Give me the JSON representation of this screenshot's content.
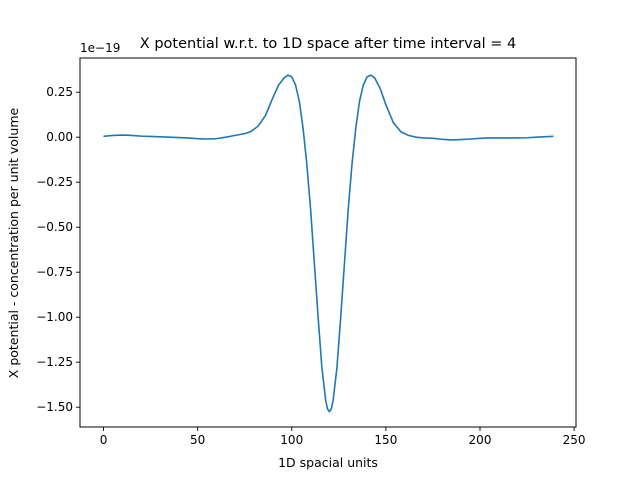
{
  "chart_data": {
    "type": "line",
    "title": "X potential w.r.t. to 1D space after time interval = 4",
    "xlabel": "1D spacial units",
    "ylabel": "X potential - concentration per unit volume",
    "y_offset_label": "1e−19",
    "xlim": [
      -12.5,
      251
    ],
    "ylim": [
      -1.61,
      0.44
    ],
    "xticks": [
      0,
      50,
      100,
      150,
      200,
      250
    ],
    "yticks": [
      -1.5,
      -1.25,
      -1.0,
      -0.75,
      -0.5,
      -0.25,
      0.0,
      0.25
    ],
    "ytick_labels": [
      "−1.50",
      "−1.25",
      "−1.00",
      "−0.75",
      "−0.50",
      "−0.25",
      "0.00",
      "0.25"
    ],
    "grid": false,
    "line_color": "#1f77b4",
    "series": [
      {
        "x": [
          0,
          5,
          10,
          15,
          20,
          25,
          30,
          35,
          40,
          45,
          50,
          55,
          60,
          65,
          70,
          75,
          78,
          82,
          86,
          90,
          93,
          96,
          98,
          100,
          102,
          104,
          106,
          108,
          110,
          112,
          114,
          116,
          118,
          119,
          120,
          121,
          122,
          124,
          126,
          128,
          130,
          132,
          134,
          136,
          138,
          140,
          142,
          144,
          147,
          150,
          154,
          158,
          162,
          166,
          170,
          175,
          180,
          185,
          190,
          195,
          200,
          205,
          210,
          215,
          220,
          225,
          230,
          235,
          239
        ],
        "y": [
          0.005,
          0.01,
          0.012,
          0.01,
          0.006,
          0.004,
          0.002,
          0.0,
          -0.002,
          -0.004,
          -0.008,
          -0.01,
          -0.008,
          0.0,
          0.01,
          0.02,
          0.03,
          0.06,
          0.12,
          0.22,
          0.29,
          0.33,
          0.345,
          0.335,
          0.29,
          0.2,
          0.05,
          -0.15,
          -0.4,
          -0.7,
          -1.0,
          -1.28,
          -1.46,
          -1.51,
          -1.525,
          -1.51,
          -1.46,
          -1.28,
          -1.0,
          -0.7,
          -0.4,
          -0.15,
          0.05,
          0.2,
          0.29,
          0.335,
          0.345,
          0.33,
          0.27,
          0.18,
          0.08,
          0.03,
          0.01,
          0.0,
          -0.004,
          -0.006,
          -0.012,
          -0.015,
          -0.013,
          -0.01,
          -0.006,
          -0.004,
          -0.004,
          -0.004,
          -0.004,
          -0.003,
          0.0,
          0.003,
          0.005
        ]
      }
    ]
  }
}
